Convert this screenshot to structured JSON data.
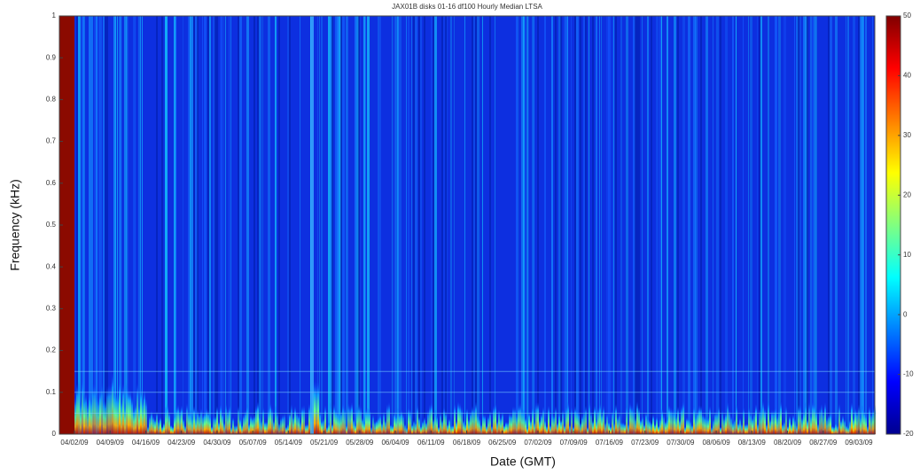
{
  "chart_data": {
    "type": "spectrogram",
    "title": "JAX01B disks 01-16 df100 Hourly Median LTSA",
    "xlabel": "Date (GMT)",
    "ylabel": "Frequency (kHz)",
    "xticks": [
      "04/02/09",
      "04/09/09",
      "04/16/09",
      "04/23/09",
      "04/30/09",
      "05/07/09",
      "05/14/09",
      "05/21/09",
      "05/28/09",
      "06/04/09",
      "06/11/09",
      "06/18/09",
      "06/25/09",
      "07/02/09",
      "07/09/09",
      "07/16/09",
      "07/23/09",
      "07/30/09",
      "08/06/09",
      "08/13/09",
      "08/20/09",
      "08/27/09",
      "09/03/09"
    ],
    "ylim": [
      0,
      1
    ],
    "yticks": [
      0,
      0.1,
      0.2,
      0.3,
      0.4,
      0.5,
      0.6,
      0.7,
      0.8,
      0.9,
      1
    ],
    "colormap": "jet",
    "clim": [
      -20,
      50
    ],
    "cticks": [
      -20,
      -10,
      0,
      10,
      20,
      30,
      40,
      50
    ]
  }
}
